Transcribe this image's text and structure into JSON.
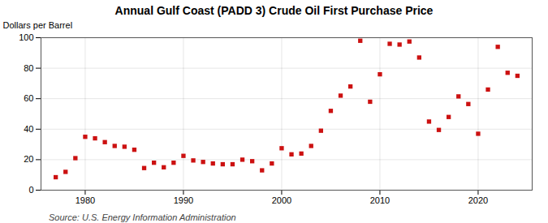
{
  "chart_data": {
    "type": "scatter",
    "title": "Annual Gulf Coast (PADD 3) Crude Oil First Purchase Price",
    "ylabel": "Dollars per Barrel",
    "source": "Source: U.S. Energy Information Administration",
    "x": [
      1977,
      1978,
      1979,
      1980,
      1981,
      1982,
      1983,
      1984,
      1985,
      1986,
      1987,
      1988,
      1989,
      1990,
      1991,
      1992,
      1993,
      1994,
      1995,
      1996,
      1997,
      1998,
      1999,
      2000,
      2001,
      2002,
      2003,
      2004,
      2005,
      2006,
      2007,
      2008,
      2009,
      2010,
      2011,
      2012,
      2013,
      2014,
      2015,
      2016,
      2017,
      2018,
      2019,
      2020,
      2021,
      2022,
      2023,
      2024
    ],
    "values": [
      8.5,
      12.0,
      21.0,
      35.0,
      34.0,
      31.5,
      29.0,
      28.5,
      26.5,
      14.5,
      18.0,
      15.0,
      18.0,
      22.5,
      19.5,
      18.5,
      17.5,
      17.0,
      17.0,
      20.0,
      19.0,
      13.0,
      17.5,
      27.5,
      23.5,
      24.0,
      29.0,
      39.0,
      52.0,
      62.0,
      68.0,
      98.0,
      58.0,
      76.0,
      96.0,
      95.5,
      97.5,
      87.0,
      45.0,
      39.5,
      48.0,
      61.5,
      56.5,
      37.0,
      66.0,
      94.0,
      77.0,
      75.0
    ],
    "color": "#cc1111",
    "marker": "square",
    "xlim": [
      1975.5,
      2025.5
    ],
    "xticks": [
      1980,
      1990,
      2000,
      2010,
      2020
    ],
    "ylim": [
      0,
      100
    ],
    "yticks": [
      0,
      20,
      40,
      60,
      80,
      100
    ],
    "grid": true
  }
}
